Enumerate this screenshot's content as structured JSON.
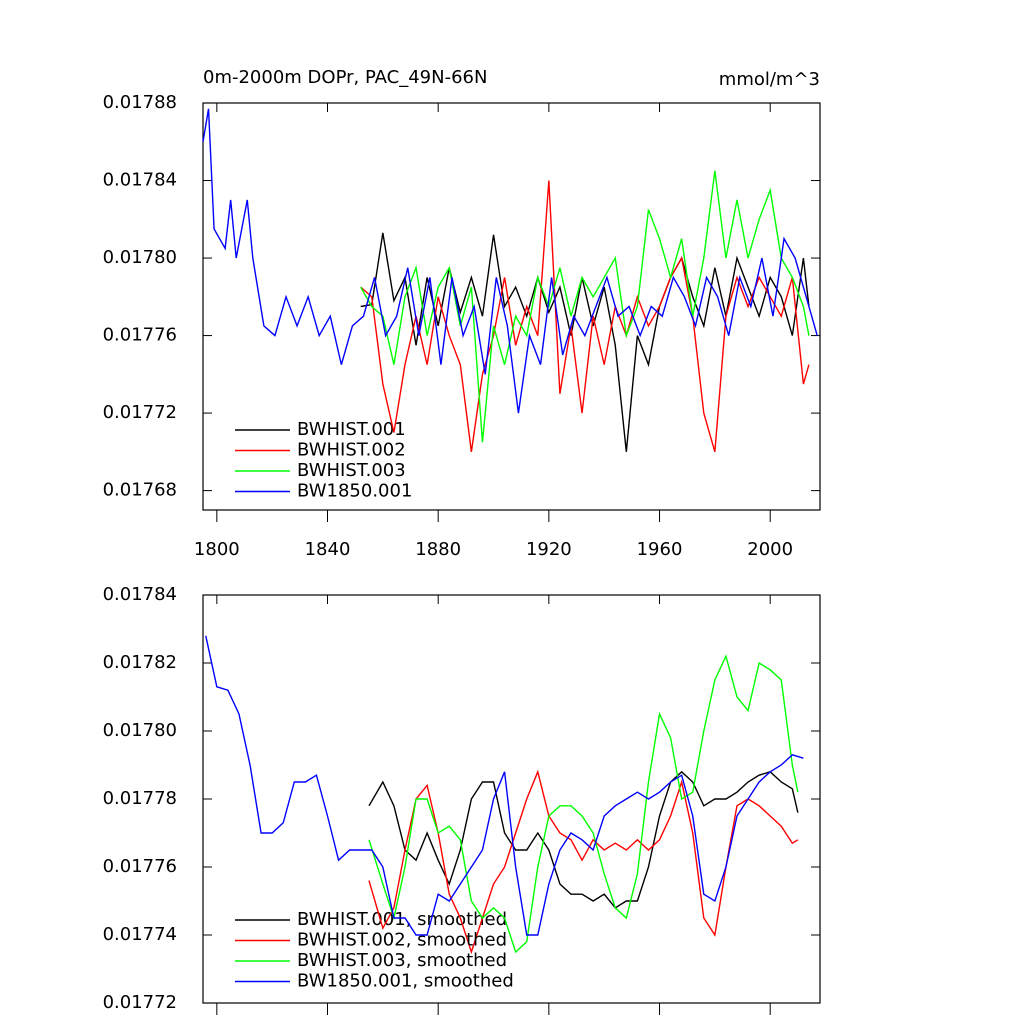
{
  "chart_data": [
    {
      "type": "line",
      "title": "0m-2000m DOPr, PAC_49N-66N",
      "subtitle": "mmol/m^3",
      "xlim": [
        1795,
        2018
      ],
      "xticks": [
        1800,
        1840,
        1880,
        1920,
        1960,
        2000
      ],
      "ylim": [
        0.01767,
        0.01788
      ],
      "yticks": [
        0.01768,
        0.01772,
        0.01776,
        {
          "value": 0.0178,
          "label": "0.01780"
        },
        0.01784,
        0.01788
      ],
      "legend": "lower left",
      "series": [
        {
          "name": "BWHIST.001",
          "color": "#000000",
          "x": [
            1852,
            1856,
            1860,
            1864,
            1868,
            1872,
            1876,
            1880,
            1884,
            1888,
            1892,
            1896,
            1900,
            1904,
            1908,
            1912,
            1916,
            1920,
            1924,
            1928,
            1932,
            1936,
            1940,
            1944,
            1948,
            1952,
            1956,
            1960,
            1964,
            1968,
            1972,
            1976,
            1980,
            1984,
            1988,
            1992,
            1996,
            2000,
            2004,
            2008,
            2012,
            2014
          ],
          "values": [
            0.017775,
            0.017776,
            0.017813,
            0.017778,
            0.01779,
            0.017755,
            0.01779,
            0.017765,
            0.017795,
            0.017772,
            0.01779,
            0.01777,
            0.017812,
            0.017775,
            0.017785,
            0.01777,
            0.01779,
            0.017772,
            0.017785,
            0.01776,
            0.01779,
            0.017765,
            0.017785,
            0.017755,
            0.0177,
            0.01776,
            0.017745,
            0.017775,
            0.01779,
            0.0178,
            0.01778,
            0.017765,
            0.017795,
            0.01777,
            0.0178,
            0.017785,
            0.01777,
            0.01779,
            0.01778,
            0.01776,
            0.0178,
            0.017775
          ]
        },
        {
          "name": "BWHIST.002",
          "color": "#ff0000",
          "x": [
            1852,
            1856,
            1860,
            1864,
            1868,
            1872,
            1876,
            1880,
            1884,
            1888,
            1892,
            1896,
            1900,
            1904,
            1908,
            1912,
            1916,
            1920,
            1924,
            1928,
            1932,
            1936,
            1940,
            1944,
            1948,
            1952,
            1956,
            1960,
            1964,
            1968,
            1972,
            1976,
            1980,
            1984,
            1988,
            1992,
            1996,
            2000,
            2004,
            2008,
            2012,
            2014
          ],
          "values": [
            0.017785,
            0.01778,
            0.017735,
            0.01771,
            0.017745,
            0.01777,
            0.017745,
            0.01778,
            0.01776,
            0.017745,
            0.0177,
            0.01774,
            0.01776,
            0.01779,
            0.017755,
            0.017775,
            0.01776,
            0.01784,
            0.01773,
            0.017765,
            0.01772,
            0.01777,
            0.017745,
            0.017775,
            0.01776,
            0.01778,
            0.017765,
            0.017775,
            0.01779,
            0.0178,
            0.01777,
            0.01772,
            0.0177,
            0.01777,
            0.01779,
            0.017775,
            0.01779,
            0.01778,
            0.01777,
            0.01779,
            0.017735,
            0.017745
          ]
        },
        {
          "name": "BWHIST.003",
          "color": "#00ff00",
          "x": [
            1852,
            1856,
            1860,
            1864,
            1868,
            1872,
            1876,
            1880,
            1884,
            1888,
            1892,
            1896,
            1900,
            1904,
            1908,
            1912,
            1916,
            1920,
            1924,
            1928,
            1932,
            1936,
            1940,
            1944,
            1948,
            1952,
            1956,
            1960,
            1964,
            1968,
            1972,
            1976,
            1980,
            1984,
            1988,
            1992,
            1996,
            2000,
            2004,
            2008,
            2012,
            2014
          ],
          "values": [
            0.017785,
            0.017775,
            0.01777,
            0.017745,
            0.01778,
            0.017795,
            0.01776,
            0.017785,
            0.017795,
            0.017765,
            0.017785,
            0.017705,
            0.017765,
            0.017745,
            0.01777,
            0.01776,
            0.01779,
            0.017775,
            0.017795,
            0.01777,
            0.01779,
            0.01778,
            0.01779,
            0.0178,
            0.01776,
            0.017775,
            0.017825,
            0.01781,
            0.01779,
            0.01781,
            0.01777,
            0.0178,
            0.017845,
            0.0178,
            0.01783,
            0.0178,
            0.01782,
            0.017835,
            0.0178,
            0.01779,
            0.017775,
            0.01776
          ]
        },
        {
          "name": "BW1850.001",
          "color": "#0000ff",
          "x": [
            1795,
            1797,
            1799,
            1803,
            1805,
            1807,
            1811,
            1813,
            1817,
            1821,
            1825,
            1829,
            1833,
            1837,
            1841,
            1845,
            1849,
            1853,
            1857,
            1861,
            1865,
            1869,
            1873,
            1877,
            1881,
            1885,
            1889,
            1893,
            1897,
            1901,
            1905,
            1909,
            1913,
            1917,
            1921,
            1925,
            1929,
            1933,
            1937,
            1941,
            1945,
            1949,
            1953,
            1957,
            1961,
            1965,
            1969,
            1973,
            1977,
            1981,
            1985,
            1989,
            1993,
            1997,
            2001,
            2005,
            2009,
            2013,
            2017
          ],
          "values": [
            0.01786,
            0.017877,
            0.017815,
            0.017805,
            0.01783,
            0.0178,
            0.01783,
            0.0178,
            0.017765,
            0.01776,
            0.01778,
            0.017765,
            0.01778,
            0.01776,
            0.01777,
            0.017745,
            0.017765,
            0.01777,
            0.01779,
            0.01776,
            0.01777,
            0.017795,
            0.01776,
            0.01779,
            0.017745,
            0.01779,
            0.01776,
            0.017775,
            0.01774,
            0.01779,
            0.017765,
            0.01772,
            0.01776,
            0.017745,
            0.01779,
            0.01775,
            0.01777,
            0.01776,
            0.017775,
            0.01779,
            0.01777,
            0.017775,
            0.01776,
            0.017775,
            0.01777,
            0.01779,
            0.01778,
            0.017765,
            0.01779,
            0.01778,
            0.01776,
            0.01779,
            0.017775,
            0.0178,
            0.01777,
            0.01781,
            0.0178,
            0.01778,
            0.01776
          ]
        }
      ]
    },
    {
      "type": "line",
      "xlim": [
        1795,
        2018
      ],
      "ylim": [
        0.01772,
        0.01784
      ],
      "yticks": [
        0.01772,
        0.01774,
        0.01776,
        0.01778,
        {
          "value": 0.0178,
          "label": "0.01780"
        },
        0.01782,
        0.01784
      ],
      "legend": "lower left",
      "series": [
        {
          "name": "BWHIST.001, smoothed",
          "color": "#000000",
          "x": [
            1855,
            1860,
            1864,
            1868,
            1872,
            1876,
            1880,
            1884,
            1888,
            1892,
            1896,
            1900,
            1904,
            1908,
            1912,
            1916,
            1920,
            1924,
            1928,
            1932,
            1936,
            1940,
            1944,
            1948,
            1952,
            1956,
            1960,
            1964,
            1968,
            1972,
            1976,
            1980,
            1984,
            1988,
            1992,
            1996,
            2000,
            2004,
            2008,
            2010
          ],
          "values": [
            0.017778,
            0.017785,
            0.017778,
            0.017765,
            0.017762,
            0.01777,
            0.017762,
            0.017755,
            0.017765,
            0.01778,
            0.017785,
            0.017785,
            0.01777,
            0.017765,
            0.017765,
            0.01777,
            0.017765,
            0.017755,
            0.017752,
            0.017752,
            0.01775,
            0.017752,
            0.017748,
            0.01775,
            0.01775,
            0.01776,
            0.017775,
            0.017785,
            0.017788,
            0.017785,
            0.017778,
            0.01778,
            0.01778,
            0.017782,
            0.017785,
            0.017787,
            0.017788,
            0.017785,
            0.017783,
            0.017776
          ]
        },
        {
          "name": "BWHIST.002, smoothed",
          "color": "#ff0000",
          "x": [
            1855,
            1860,
            1864,
            1868,
            1872,
            1876,
            1880,
            1884,
            1888,
            1892,
            1896,
            1900,
            1904,
            1908,
            1912,
            1916,
            1920,
            1924,
            1928,
            1932,
            1936,
            1940,
            1944,
            1948,
            1952,
            1956,
            1960,
            1964,
            1968,
            1972,
            1976,
            1980,
            1984,
            1988,
            1992,
            1996,
            2000,
            2004,
            2008,
            2010
          ],
          "values": [
            0.017756,
            0.017742,
            0.017748,
            0.017765,
            0.01778,
            0.017784,
            0.01777,
            0.017752,
            0.017745,
            0.017735,
            0.017745,
            0.017755,
            0.01776,
            0.01777,
            0.01778,
            0.017788,
            0.017775,
            0.01777,
            0.017768,
            0.017762,
            0.017768,
            0.017765,
            0.017767,
            0.017765,
            0.017768,
            0.017765,
            0.017768,
            0.017775,
            0.017785,
            0.01777,
            0.017745,
            0.01774,
            0.01776,
            0.017778,
            0.01778,
            0.017778,
            0.017775,
            0.017772,
            0.017767,
            0.017768
          ]
        },
        {
          "name": "BWHIST.003, smoothed",
          "color": "#00ff00",
          "x": [
            1855,
            1860,
            1864,
            1868,
            1872,
            1876,
            1880,
            1884,
            1888,
            1892,
            1896,
            1900,
            1904,
            1908,
            1912,
            1916,
            1920,
            1924,
            1928,
            1932,
            1936,
            1940,
            1944,
            1948,
            1952,
            1956,
            1960,
            1964,
            1968,
            1972,
            1976,
            1980,
            1984,
            1988,
            1992,
            1996,
            2000,
            2004,
            2008,
            2010
          ],
          "values": [
            0.017768,
            0.017755,
            0.017745,
            0.01776,
            0.01778,
            0.01778,
            0.01777,
            0.017772,
            0.017768,
            0.01775,
            0.017745,
            0.017748,
            0.017745,
            0.017735,
            0.017738,
            0.01776,
            0.017775,
            0.017778,
            0.017778,
            0.017775,
            0.01777,
            0.017758,
            0.017748,
            0.017745,
            0.017758,
            0.017785,
            0.017805,
            0.017798,
            0.01778,
            0.017782,
            0.0178,
            0.017815,
            0.017822,
            0.01781,
            0.017806,
            0.01782,
            0.017818,
            0.017815,
            0.01779,
            0.017782
          ]
        },
        {
          "name": "BW1850.001, smoothed",
          "color": "#0000ff",
          "x": [
            1796,
            1800,
            1804,
            1808,
            1812,
            1816,
            1820,
            1824,
            1828,
            1832,
            1836,
            1840,
            1844,
            1848,
            1852,
            1856,
            1860,
            1864,
            1868,
            1872,
            1876,
            1880,
            1884,
            1888,
            1892,
            1896,
            1900,
            1904,
            1908,
            1912,
            1916,
            1920,
            1924,
            1928,
            1932,
            1936,
            1940,
            1944,
            1948,
            1952,
            1956,
            1960,
            1964,
            1968,
            1972,
            1976,
            1980,
            1984,
            1988,
            1992,
            1996,
            2000,
            2004,
            2008,
            2012
          ],
          "values": [
            0.017828,
            0.017813,
            0.017812,
            0.017805,
            0.01779,
            0.01777,
            0.01777,
            0.017773,
            0.017785,
            0.017785,
            0.017787,
            0.017775,
            0.017762,
            0.017765,
            0.017765,
            0.017765,
            0.01776,
            0.017745,
            0.017745,
            0.01774,
            0.01774,
            0.017752,
            0.01775,
            0.017755,
            0.01776,
            0.017765,
            0.01778,
            0.017788,
            0.01776,
            0.01774,
            0.01774,
            0.017755,
            0.017765,
            0.01777,
            0.017768,
            0.017765,
            0.017775,
            0.017778,
            0.01778,
            0.017782,
            0.01778,
            0.017782,
            0.017785,
            0.017787,
            0.017775,
            0.017752,
            0.01775,
            0.01776,
            0.017775,
            0.01778,
            0.017785,
            0.017788,
            0.01779,
            0.017793,
            0.017792
          ]
        }
      ]
    }
  ]
}
